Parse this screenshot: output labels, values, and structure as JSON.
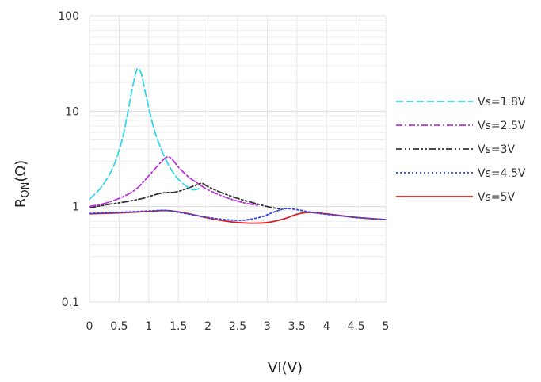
{
  "chart_data": {
    "type": "line",
    "xlabel": "VI(V)",
    "ylabel": {
      "main": "R",
      "sub": "ON",
      "unit": "(Ω)"
    },
    "xlim": [
      0,
      5
    ],
    "ylim": [
      0.1,
      100
    ],
    "yscale": "log",
    "grid": true,
    "legend_position": "right",
    "x_ticks": [
      "0",
      "0.5",
      "1",
      "1.5",
      "2",
      "2.5",
      "3",
      "3.5",
      "4",
      "4.5",
      "5"
    ],
    "y_ticks": [
      "0.1",
      "1",
      "10",
      "100"
    ],
    "series": [
      {
        "name": "Vs=1.8V",
        "color": "#33d6e6",
        "dash": "9,4",
        "x": [
          0,
          0.2,
          0.4,
          0.55,
          0.65,
          0.72,
          0.78,
          0.82,
          0.88,
          0.95,
          1.05,
          1.15,
          1.3,
          1.45,
          1.6,
          1.75,
          1.85
        ],
        "y": [
          1.2,
          1.6,
          2.6,
          5.0,
          10,
          17,
          25,
          28,
          24,
          15,
          8,
          5,
          3,
          2.1,
          1.7,
          1.5,
          1.55
        ]
      },
      {
        "name": "Vs=2.5V",
        "color": "#bb33dd",
        "dash": "8,3,2,3",
        "x": [
          0,
          0.3,
          0.6,
          0.8,
          1.0,
          1.2,
          1.3,
          1.38,
          1.5,
          1.65,
          1.8,
          2.0,
          2.3,
          2.6,
          2.85
        ],
        "y": [
          1.0,
          1.1,
          1.3,
          1.55,
          2.1,
          2.9,
          3.3,
          3.2,
          2.6,
          2.1,
          1.8,
          1.5,
          1.25,
          1.1,
          1.03
        ]
      },
      {
        "name": "Vs=3V",
        "color": "#333333",
        "dash": "8,3,2,3,2,3",
        "x": [
          0,
          0.3,
          0.6,
          0.9,
          1.2,
          1.45,
          1.65,
          1.8,
          1.9,
          2.0,
          2.2,
          2.5,
          2.8,
          3.0,
          3.2
        ],
        "y": [
          0.97,
          1.05,
          1.12,
          1.22,
          1.38,
          1.42,
          1.55,
          1.68,
          1.75,
          1.62,
          1.42,
          1.22,
          1.08,
          1.0,
          0.95
        ]
      },
      {
        "name": "Vs=4.5V",
        "color": "#3344ee",
        "dash": "2,3",
        "x": [
          0,
          0.5,
          1.0,
          1.3,
          1.6,
          2.0,
          2.3,
          2.6,
          2.9,
          3.1,
          3.3,
          3.5,
          3.7,
          4.0,
          4.5,
          5.0
        ],
        "y": [
          0.85,
          0.87,
          0.9,
          0.91,
          0.85,
          0.77,
          0.73,
          0.72,
          0.78,
          0.87,
          0.95,
          0.93,
          0.88,
          0.83,
          0.77,
          0.73
        ]
      },
      {
        "name": "Vs=5V",
        "color": "#cc2222",
        "dash": "",
        "x": [
          0,
          0.5,
          1.0,
          1.3,
          1.6,
          2.0,
          2.4,
          2.7,
          3.0,
          3.3,
          3.5,
          3.7,
          4.0,
          4.5,
          5.0
        ],
        "y": [
          0.84,
          0.86,
          0.89,
          0.91,
          0.86,
          0.76,
          0.69,
          0.67,
          0.68,
          0.75,
          0.83,
          0.87,
          0.84,
          0.77,
          0.73
        ]
      }
    ]
  }
}
